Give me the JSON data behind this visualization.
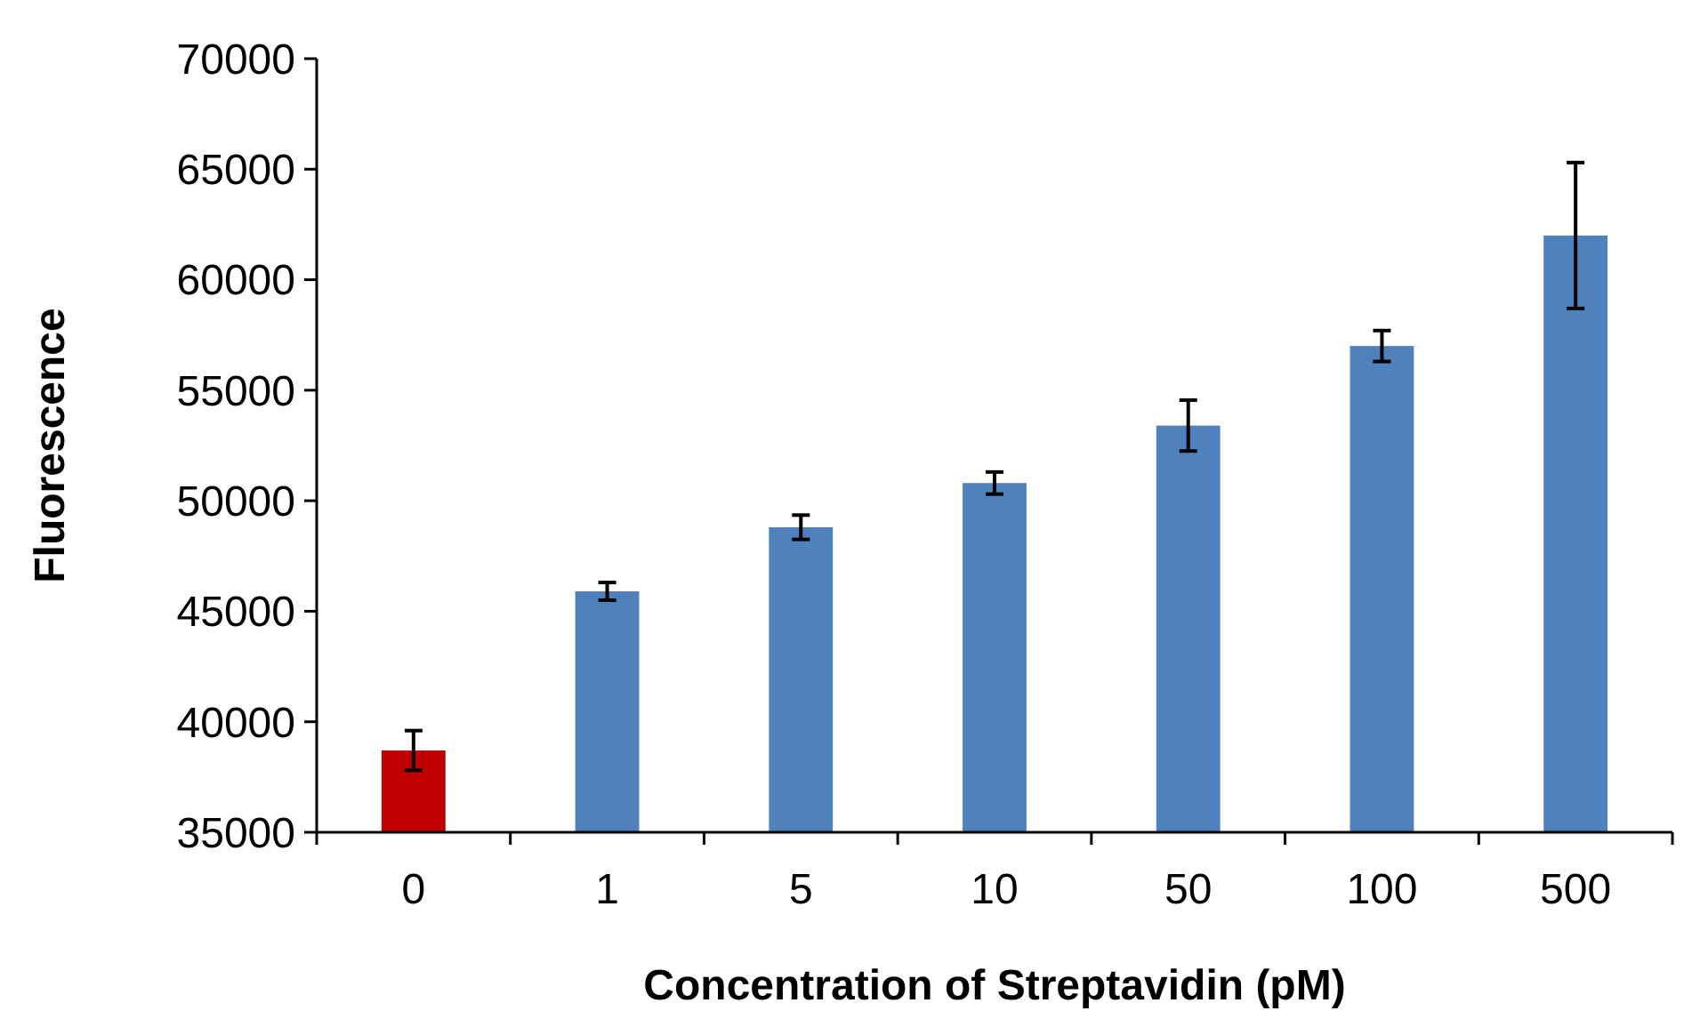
{
  "chart_data": {
    "type": "bar",
    "xlabel": "Concentration of Streptavidin (pM)",
    "ylabel": "Fluorescence",
    "categories": [
      "0",
      "1",
      "5",
      "10",
      "50",
      "100",
      "500"
    ],
    "values": [
      38700,
      45900,
      48800,
      50800,
      53400,
      57000,
      62000
    ],
    "errors": [
      900,
      400,
      550,
      500,
      1150,
      700,
      3300
    ],
    "colors": [
      "#c00000",
      "#4f81bd",
      "#4f81bd",
      "#4f81bd",
      "#4f81bd",
      "#4f81bd",
      "#4f81bd"
    ],
    "ylim": [
      35000,
      70000
    ],
    "yticks": [
      35000,
      40000,
      45000,
      50000,
      55000,
      60000,
      65000,
      70000
    ],
    "grid": false
  }
}
